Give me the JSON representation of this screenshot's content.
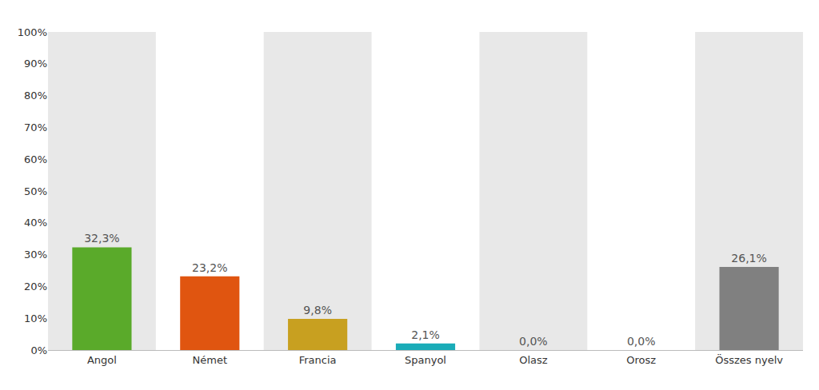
{
  "chart_data": {
    "type": "bar",
    "categories": [
      "Angol",
      "Német",
      "Francia",
      "Spanyol",
      "Olasz",
      "Orosz",
      "Összes nyelv"
    ],
    "values": [
      32.3,
      23.2,
      9.8,
      2.1,
      0.0,
      0.0,
      26.1
    ],
    "value_labels": [
      "32,3%",
      "23,2%",
      "9,8%",
      "2,1%",
      "0,0%",
      "0,0%",
      "26,1%"
    ],
    "colors": [
      "#5aaa2a",
      "#e05510",
      "#c8a020",
      "#1aacb8",
      "#cccccc",
      "#cccccc",
      "#808080"
    ],
    "ylim": [
      0,
      100
    ],
    "yticks": [
      {
        "value": 0,
        "label": "0%"
      },
      {
        "value": 10,
        "label": "10%"
      },
      {
        "value": 20,
        "label": "20%"
      },
      {
        "value": 30,
        "label": "30%"
      },
      {
        "value": 40,
        "label": "40%"
      },
      {
        "value": 50,
        "label": "50%"
      },
      {
        "value": 60,
        "label": "60%"
      },
      {
        "value": 70,
        "label": "70%"
      },
      {
        "value": 80,
        "label": "80%"
      },
      {
        "value": 90,
        "label": "90%"
      },
      {
        "value": 100,
        "label": "100%"
      }
    ],
    "grid": false,
    "data_labels": true
  }
}
